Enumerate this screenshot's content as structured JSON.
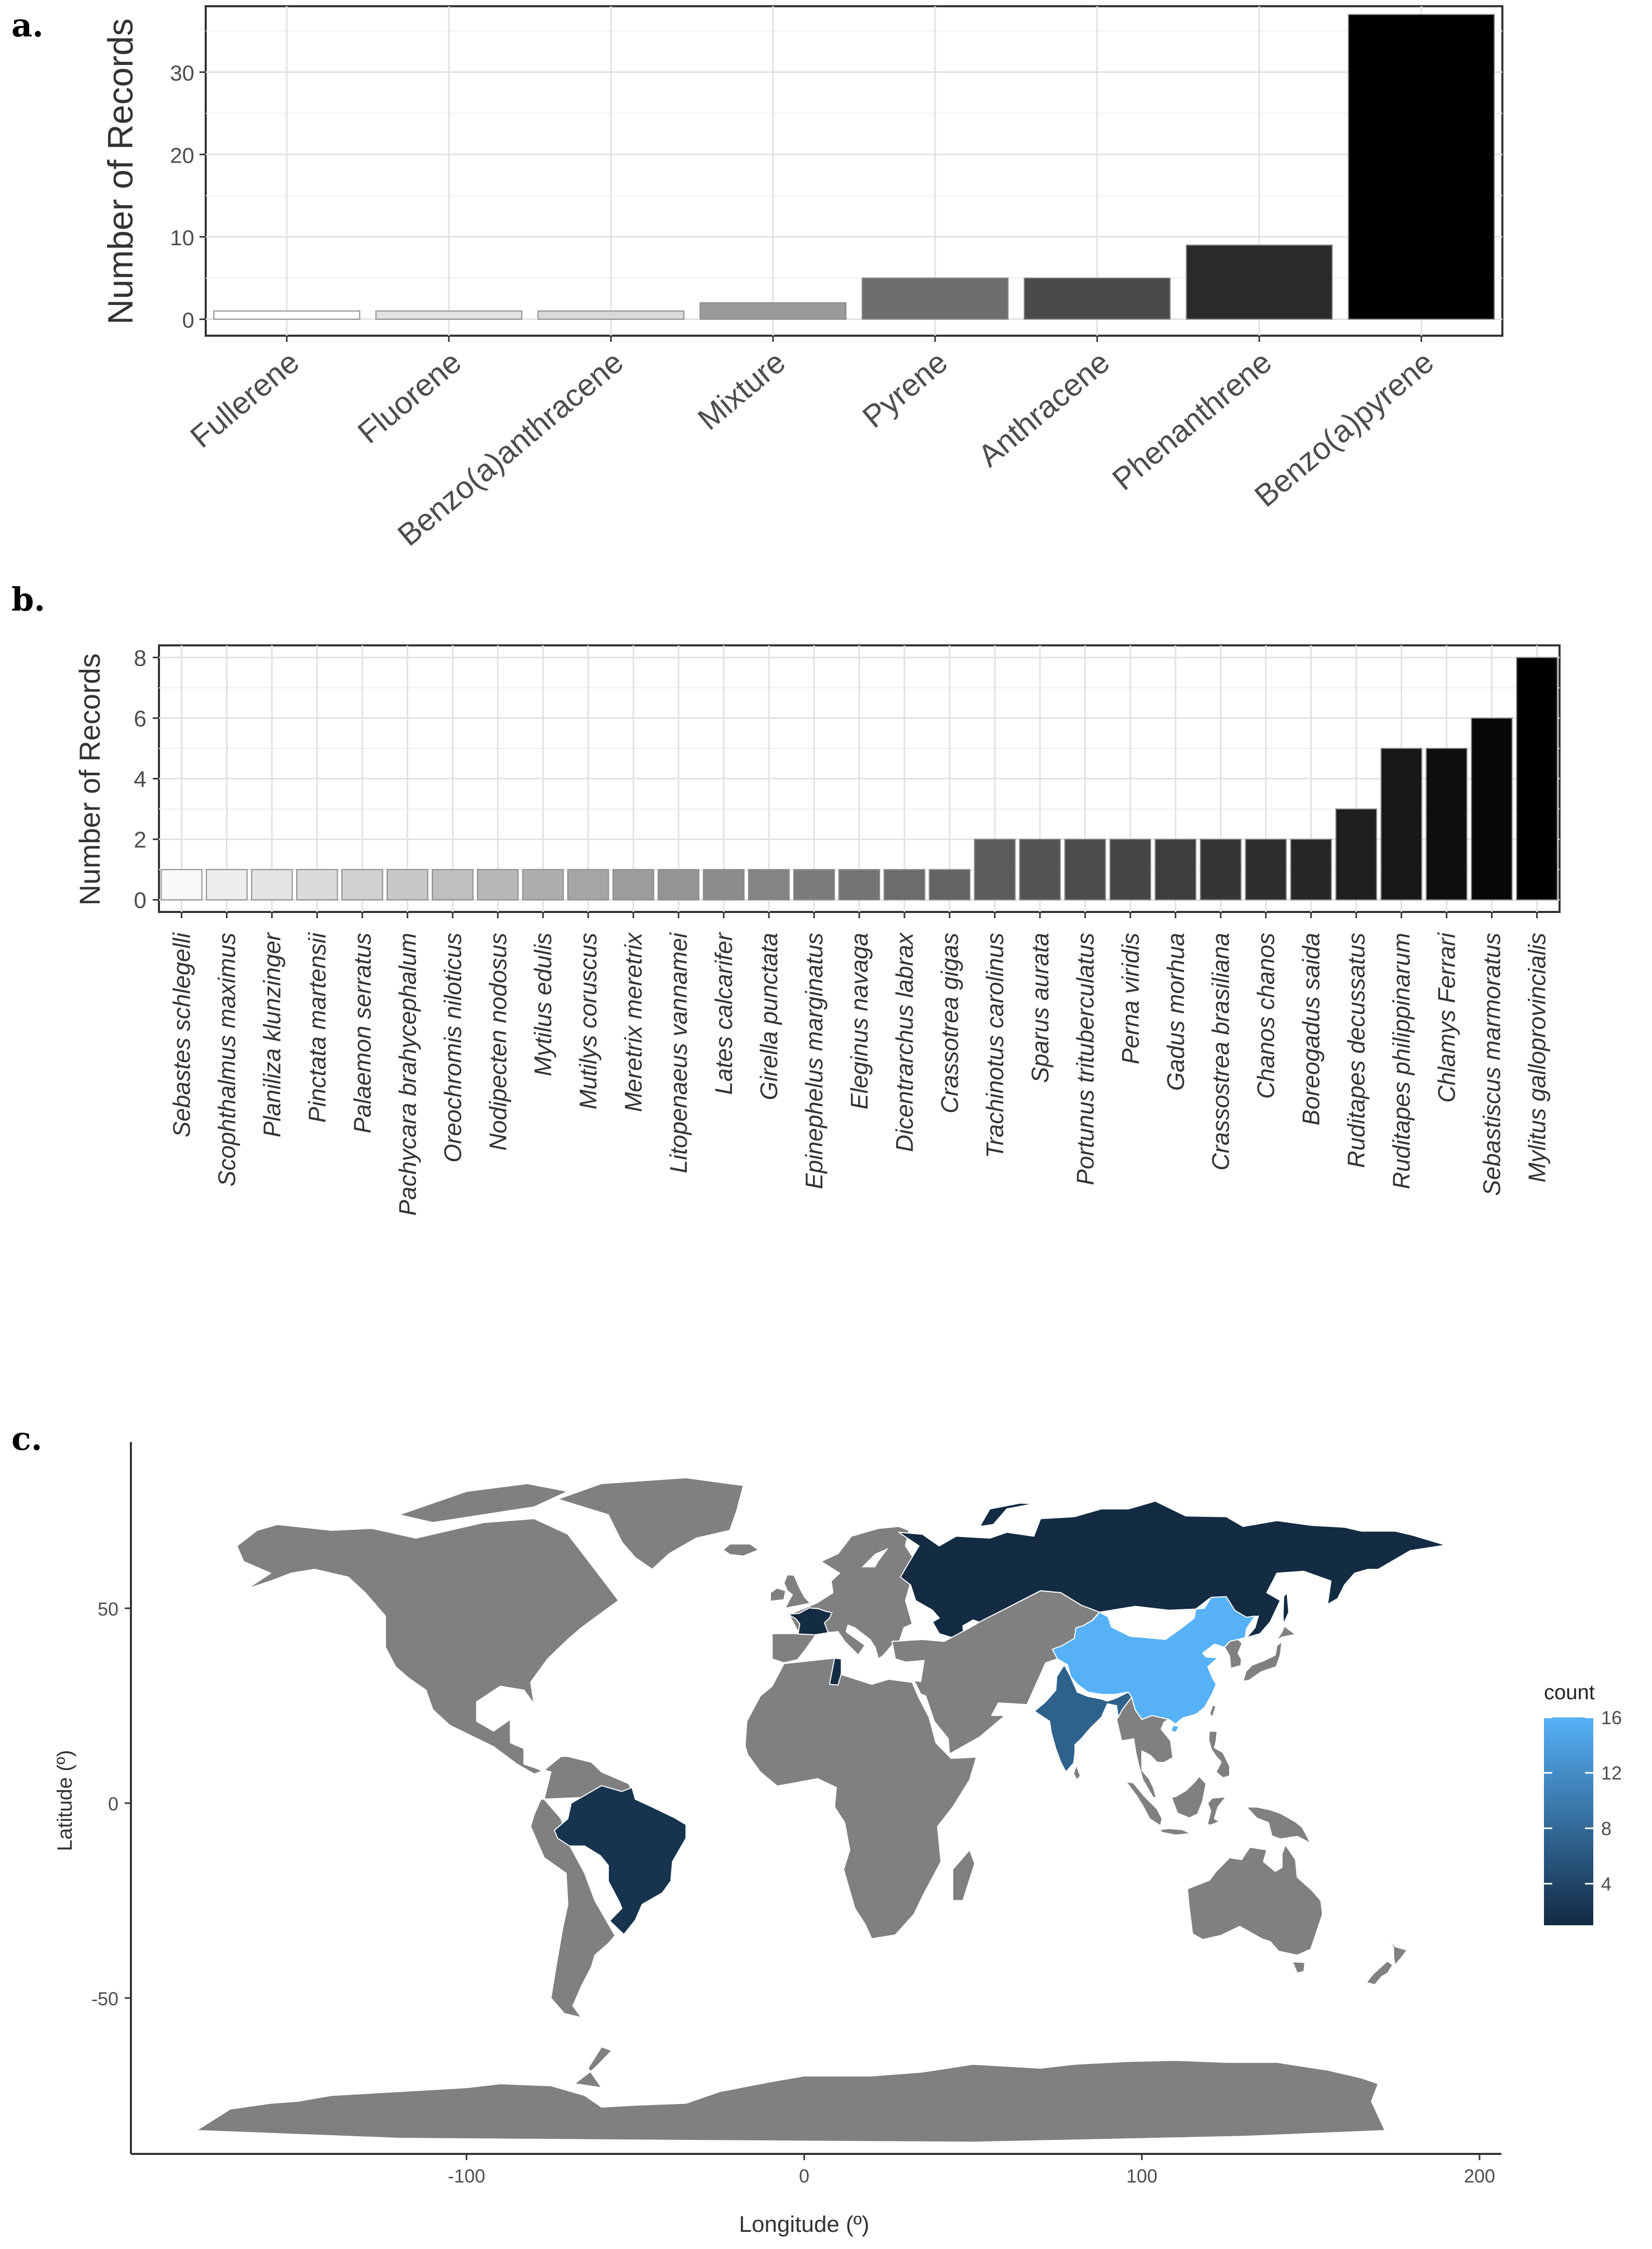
{
  "chart_data": [
    {
      "panel": "a.",
      "type": "bar",
      "title": "",
      "xlabel": "",
      "ylabel": "Number of Records",
      "ylim": [
        -2,
        38
      ],
      "yticks": [
        0,
        10,
        20,
        30
      ],
      "grid": true,
      "categories": [
        "Fullerene",
        "Fluorene",
        "Benzo(a)anthracene",
        "Mixture",
        "Pyrene",
        "Anthracene",
        "Phenanthrene",
        "Benzo(a)pyrene"
      ],
      "values": [
        1,
        1,
        1,
        2,
        5,
        5,
        9,
        37
      ],
      "colors": [
        "#ffffff",
        "#e3e3e3",
        "#d9d9d9",
        "#9a9a9a",
        "#6e6e6e",
        "#4a4a4a",
        "#2a2a2a",
        "#000000"
      ]
    },
    {
      "panel": "b.",
      "type": "bar",
      "title": "",
      "xlabel": "",
      "ylabel": "Number of Records",
      "ylim": [
        -0.4,
        8.4
      ],
      "yticks": [
        0,
        2,
        4,
        6,
        8
      ],
      "grid": true,
      "italic_categories": true,
      "categories": [
        "Sebastes schlegelli",
        "Scophthalmus maximus",
        "Planiliza klunzinger",
        "Pinctata martensii",
        "Palaemon serratus",
        "Pachycara brahycephalum",
        "Oreochromis niloticus",
        "Nodipecten nodosus",
        "Mytilus edulis",
        "Mutilys coruscus",
        "Meretrix meretrix",
        "Litopenaeus vannamei",
        "Lates calcarifer",
        "Girella punctata",
        "Epinephelus marginatus",
        "Eleginus navaga",
        "Dicentrarchus labrax",
        "Crassotrea gigas",
        "Trachinotus carolinus",
        "Sparus aurata",
        "Portunus trituberculatus",
        "Perna viridis",
        "Gadus morhua",
        "Crassostrea brasiliana",
        "Chanos chanos",
        "Boreogadus saida",
        "Ruditapes decussatus",
        "Ruditapes philippinarum",
        "Chlamys Ferrari",
        "Sebastiscus marmoratus",
        "Mylitus galloprovincialis"
      ],
      "values": [
        1,
        1,
        1,
        1,
        1,
        1,
        1,
        1,
        1,
        1,
        1,
        1,
        1,
        1,
        1,
        1,
        1,
        1,
        2,
        2,
        2,
        2,
        2,
        2,
        2,
        2,
        3,
        5,
        5,
        6,
        8
      ]
    },
    {
      "panel": "c.",
      "type": "choropleth",
      "title": "",
      "xlabel": "Longitude (º)",
      "ylabel": "Latitude (º)",
      "xlim": [
        -200,
        210
      ],
      "ylim": [
        -92,
        90
      ],
      "xticks": [
        -100,
        0,
        100,
        200
      ],
      "yticks": [
        -50,
        0,
        50
      ],
      "legend": {
        "title": "count",
        "ticks": [
          4,
          8,
          12,
          16
        ],
        "range": [
          1,
          16
        ],
        "low_color": "#132b43",
        "high_color": "#56b1f7",
        "position": "right"
      },
      "no_data_color": "#808080",
      "regions": [
        {
          "name": "China",
          "count": 16
        },
        {
          "name": "India",
          "count": 7
        },
        {
          "name": "Brazil",
          "count": 2
        },
        {
          "name": "Russia",
          "count": 1
        },
        {
          "name": "France",
          "count": 1
        },
        {
          "name": "Tunisia",
          "count": 1
        }
      ]
    }
  ]
}
